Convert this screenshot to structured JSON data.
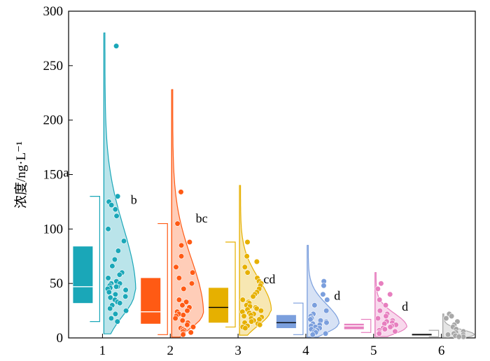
{
  "chart_data": {
    "type": "box-violin",
    "ylabel": "浓度/ng·L⁻¹",
    "ylim": [
      0,
      300
    ],
    "yticks": [
      0,
      50,
      100,
      150,
      200,
      250,
      300
    ],
    "categories": [
      "1",
      "2",
      "3",
      "4",
      "5",
      "6"
    ],
    "groups": [
      {
        "label": "1",
        "letter": "a",
        "color": "#1aa7b8",
        "box": {
          "q1": 32,
          "median": 47,
          "q3": 84
        },
        "whisker": [
          15,
          130
        ],
        "max": 280,
        "points": [
          268,
          130,
          125,
          122,
          118,
          112,
          100,
          89,
          80,
          72,
          66,
          60,
          58,
          55,
          52,
          50,
          50,
          48,
          47,
          47,
          46,
          45,
          44,
          44,
          42,
          40,
          38,
          37,
          35,
          33,
          32,
          30,
          27,
          25,
          22,
          18,
          15
        ]
      },
      {
        "label": "2",
        "letter": "b",
        "color": "#ff5a14",
        "box": {
          "q1": 13,
          "median": 24,
          "q3": 55
        },
        "whisker": [
          3,
          105
        ],
        "max": 228,
        "points": [
          134,
          105,
          88,
          85,
          75,
          65,
          60,
          55,
          50,
          45,
          35,
          33,
          30,
          28,
          25,
          24,
          22,
          21,
          20,
          18,
          16,
          14,
          12,
          10,
          9,
          8,
          7,
          6,
          5,
          4,
          3
        ]
      },
      {
        "label": "3",
        "letter": "bc",
        "color": "#e6b000",
        "box": {
          "q1": 14,
          "median": 28,
          "q3": 46
        },
        "whisker": [
          10,
          88
        ],
        "max": 140,
        "points": [
          88,
          75,
          70,
          65,
          60,
          55,
          52,
          50,
          48,
          45,
          42,
          40,
          38,
          35,
          33,
          32,
          30,
          29,
          28,
          27,
          26,
          25,
          24,
          23,
          22,
          21,
          20,
          19,
          18,
          17,
          16,
          15,
          14,
          13,
          12,
          11,
          10,
          9
        ]
      },
      {
        "label": "4",
        "letter": "cd",
        "color": "#7b9fdd",
        "box": {
          "q1": 9,
          "median": 14,
          "q3": 21
        },
        "whisker": [
          3,
          32
        ],
        "max": 85,
        "points": [
          52,
          48,
          40,
          35,
          30,
          25,
          22,
          20,
          18,
          17,
          16,
          15,
          14,
          13,
          12,
          11,
          10,
          9,
          8,
          7,
          6,
          5,
          4,
          3
        ]
      },
      {
        "label": "5",
        "letter": "d",
        "color": "#e77fbf",
        "box": {
          "q1": 8,
          "median": 11,
          "q3": 13
        },
        "whisker": [
          5,
          17
        ],
        "max": 60,
        "points": [
          50,
          45,
          40,
          35,
          30,
          25,
          22,
          20,
          18,
          16,
          15,
          14,
          13,
          12,
          11,
          10,
          9,
          8,
          7,
          6,
          5,
          4
        ]
      },
      {
        "label": "6",
        "letter": "d",
        "color": "#a8a8a8",
        "box": {
          "q1": 2,
          "median": 3,
          "q3": 4
        },
        "whisker": [
          1,
          7
        ],
        "max": 22,
        "points": [
          22,
          20,
          18,
          15,
          12,
          10,
          8,
          6,
          5,
          4,
          3,
          3,
          2,
          2,
          1,
          1
        ]
      }
    ]
  }
}
